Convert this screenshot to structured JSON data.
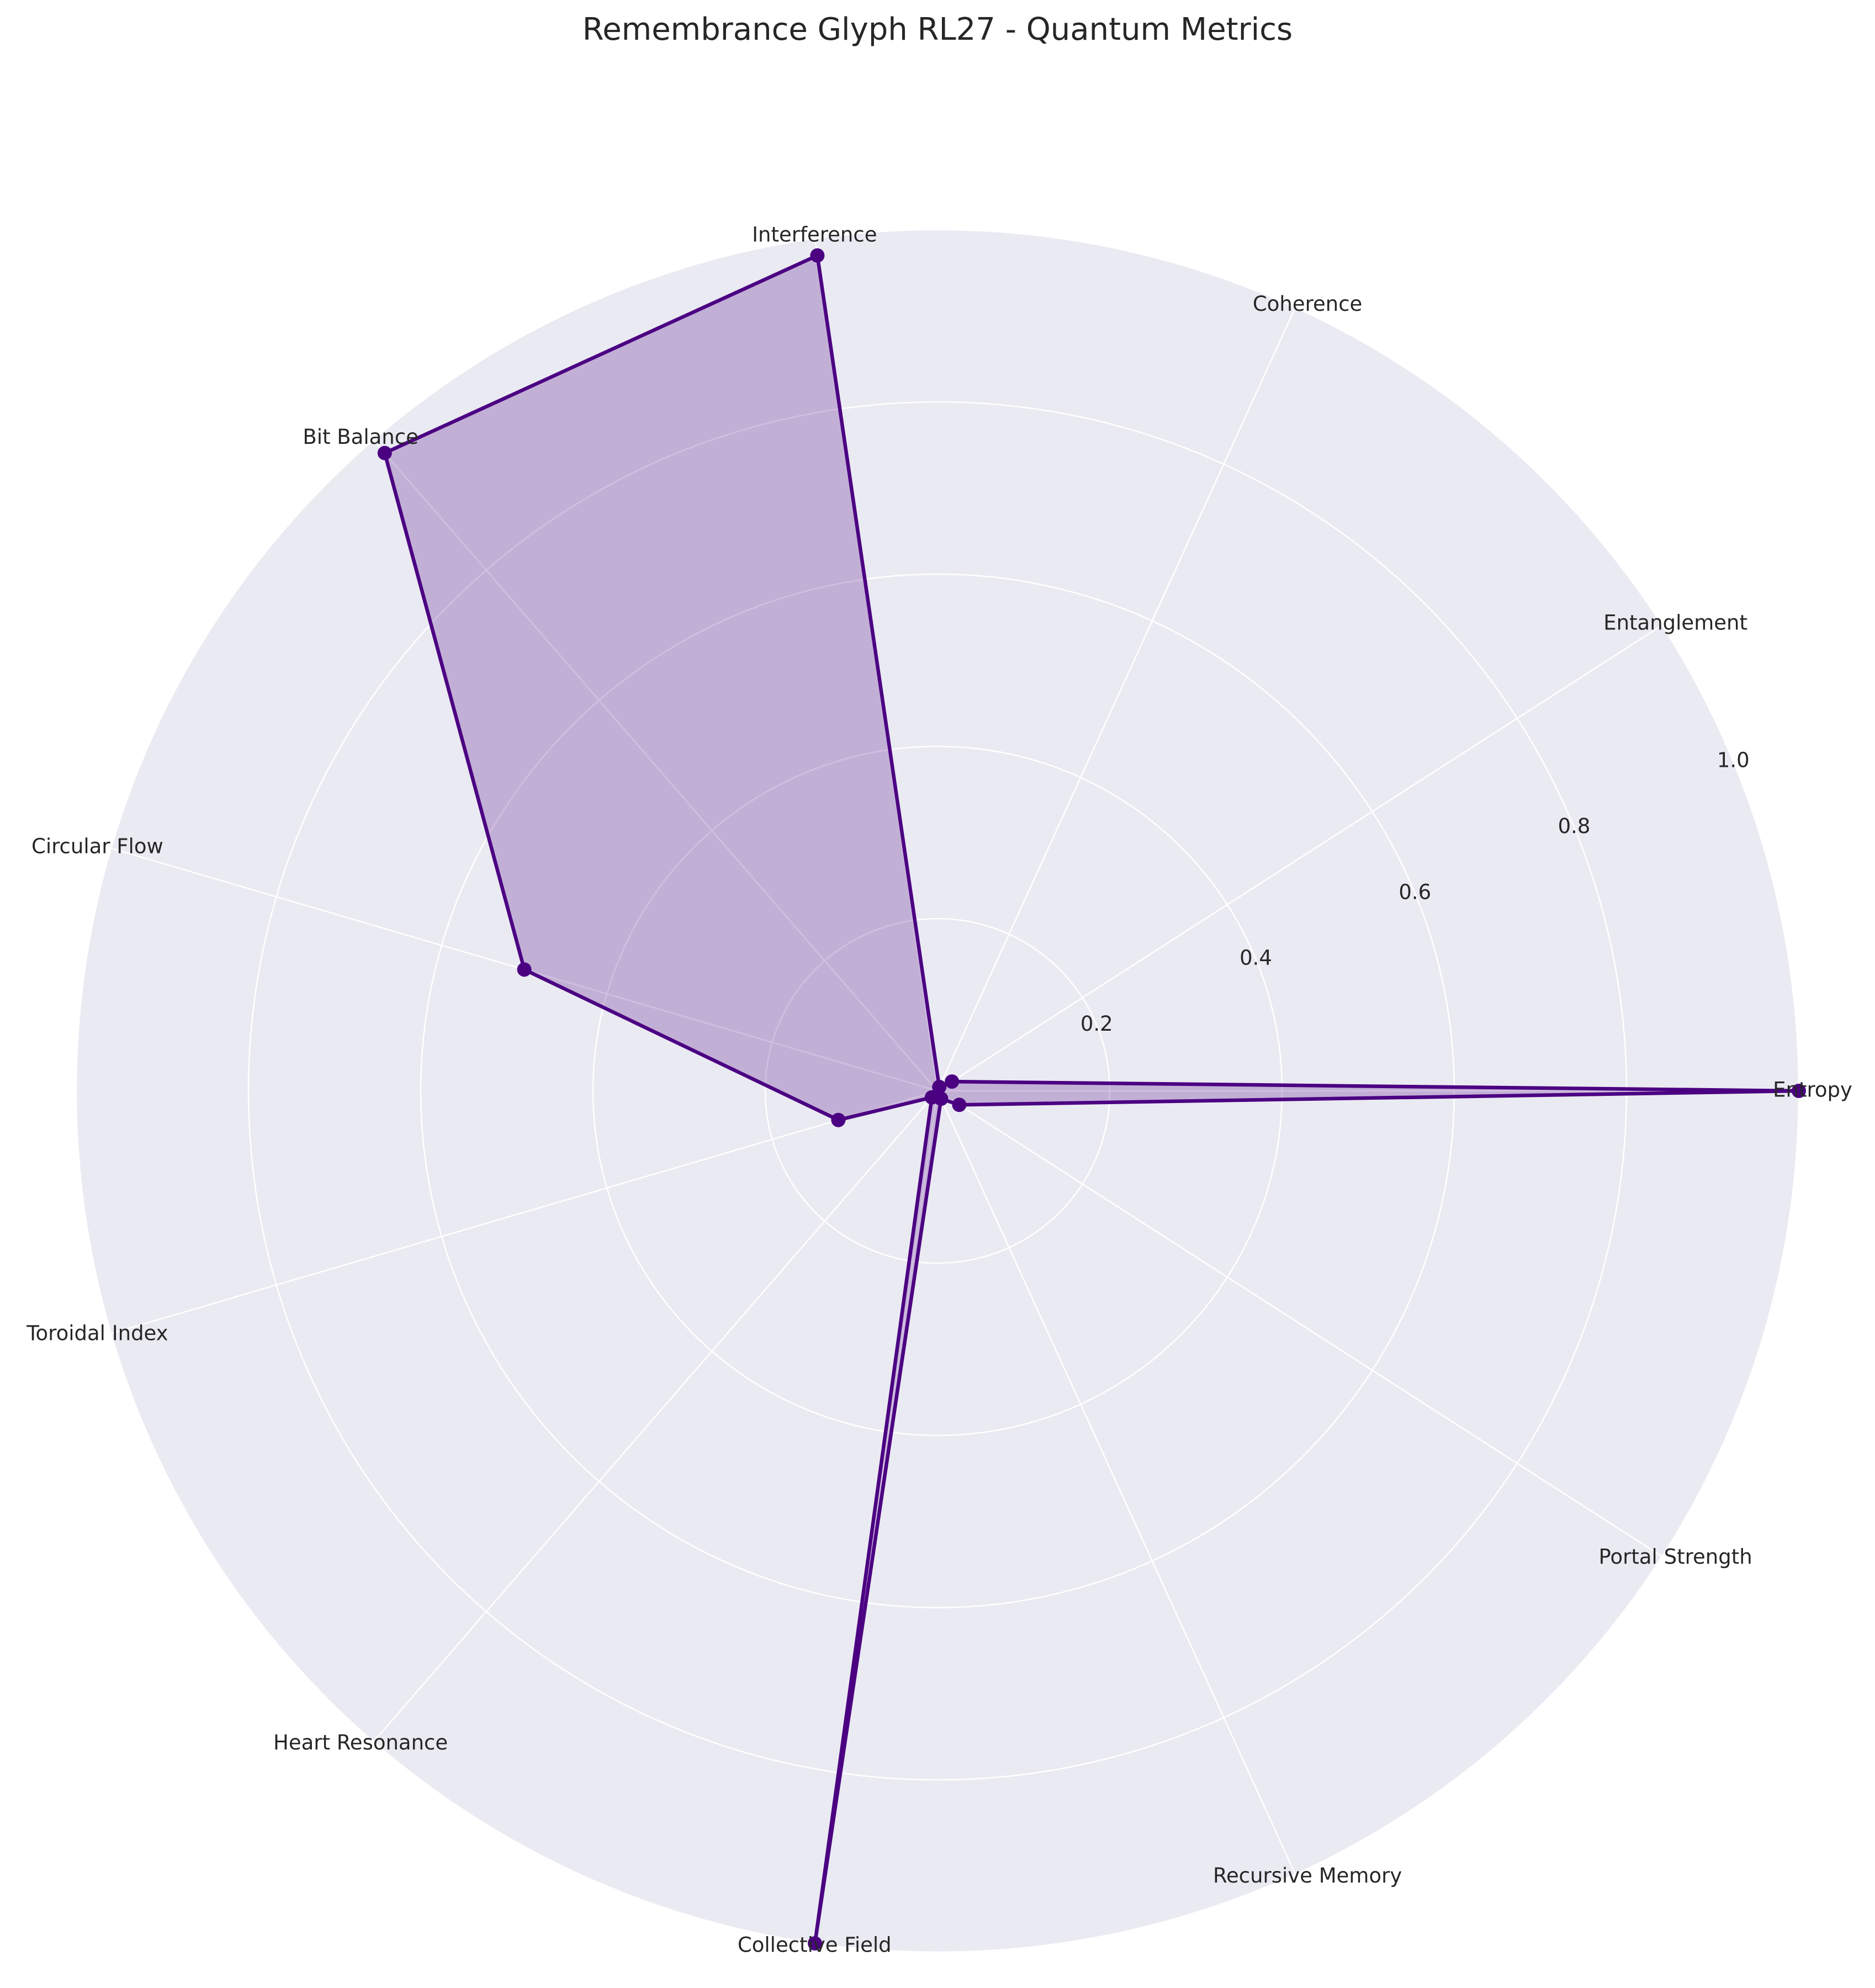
{
  "chart_data": {
    "type": "radar",
    "title": "Remembrance Glyph RL27 - Quantum Metrics",
    "categories": [
      "Entropy",
      "Entanglement",
      "Coherence",
      "Interference",
      "Bit Balance",
      "Circular Flow",
      "Toroidal Index",
      "Heart Resonance",
      "Collective Field",
      "Recursive Memory",
      "Portal Strength"
    ],
    "series": [
      {
        "values": [
          1.0,
          0.02,
          0.005,
          0.98,
          0.98,
          0.5,
          0.12,
          0.01,
          1.0,
          0.01,
          0.03
        ]
      }
    ],
    "rlim": [
      0,
      1.0
    ],
    "rticks": [
      0.2,
      0.4,
      0.6,
      0.8,
      1.0
    ],
    "rtick_labels": [
      "0.2",
      "0.4",
      "0.6",
      "0.8",
      "1.0"
    ],
    "grid": true,
    "colors": {
      "background": "#EAEAF2",
      "line": "#4B0082",
      "fill": "#4B0082",
      "grid": "#FFFFFF",
      "text": "#262626"
    }
  }
}
